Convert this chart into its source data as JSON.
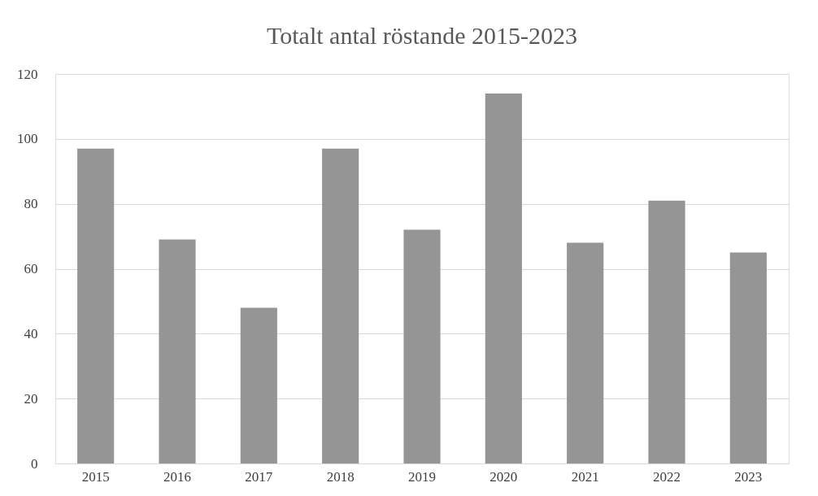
{
  "chart_data": {
    "type": "bar",
    "title": "Totalt antal röstande 2015-2023",
    "categories": [
      "2015",
      "2016",
      "2017",
      "2018",
      "2019",
      "2020",
      "2021",
      "2022",
      "2023"
    ],
    "values": [
      97,
      69,
      48,
      97,
      72,
      114,
      68,
      81,
      65
    ],
    "color": "#959595",
    "ylim": [
      0,
      120
    ],
    "yticks": [
      0,
      20,
      40,
      60,
      80,
      100,
      120
    ],
    "grid": "y"
  }
}
